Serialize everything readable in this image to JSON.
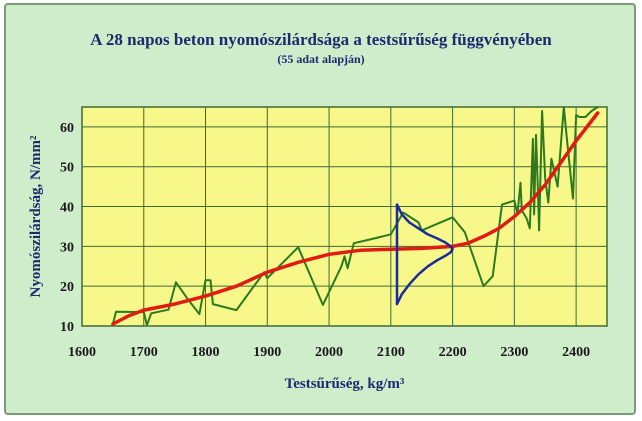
{
  "chart_data": {
    "type": "line",
    "title": "A 28 napos beton nyomószilárdsága a testsűrűség függvényében",
    "subtitle": "(55 adat alapján)",
    "xlabel": "Testsűrűség, kg/m³",
    "ylabel": "Nyomószilárdság, N/mm²",
    "xlim": [
      1600,
      2450
    ],
    "ylim": [
      10,
      65
    ],
    "xticks": [
      1600,
      1700,
      1800,
      1900,
      2000,
      2100,
      2200,
      2300,
      2400
    ],
    "yticks": [
      10,
      20,
      30,
      40,
      50,
      60
    ],
    "grid": true,
    "colors": {
      "plot_background": "#f8f78a",
      "frame_background": "#cfeccb",
      "grid": "#3d6b33",
      "measured": "#2b7a1f",
      "trend": "#e01b14",
      "distribution": "#1b2b9a"
    },
    "series": [
      {
        "kind": "measured",
        "x": [
          1650,
          1655,
          1700,
          1705,
          1712,
          1740,
          1752,
          1770,
          1790,
          1800,
          1808,
          1812,
          1850,
          1895,
          1900,
          1950,
          1990,
          2020,
          2025,
          2030,
          2040,
          2060,
          2100,
          2120,
          2145,
          2150,
          2200,
          2220,
          2250,
          2265,
          2280,
          2300,
          2305,
          2310,
          2312,
          2320,
          2325,
          2330,
          2332,
          2335,
          2338,
          2340,
          2345,
          2350,
          2355,
          2360,
          2370,
          2380,
          2385,
          2395,
          2400,
          2405,
          2415,
          2425,
          2435
        ],
        "y": [
          10.5,
          13.6,
          13.5,
          10.2,
          13.2,
          14.1,
          21,
          17,
          13,
          21.5,
          21.5,
          15.5,
          14,
          23.5,
          22,
          29.8,
          15.3,
          25,
          27.5,
          24.5,
          30.8,
          31.5,
          33,
          38.5,
          36,
          34,
          37.3,
          33.5,
          20,
          22.5,
          40.5,
          41.5,
          38,
          46,
          39,
          37,
          34.5,
          57,
          38,
          58,
          45,
          34,
          64,
          47,
          41,
          52,
          45,
          65,
          57,
          42,
          63,
          62.5,
          62.5,
          64,
          65
        ]
      },
      {
        "kind": "trend",
        "x": [
          1650,
          1675,
          1700,
          1750,
          1800,
          1850,
          1900,
          1950,
          2000,
          2050,
          2100,
          2150,
          2200,
          2225,
          2250,
          2275,
          2300,
          2325,
          2350,
          2375,
          2400,
          2435
        ],
        "y": [
          10.5,
          12.5,
          14,
          15.5,
          17.5,
          20,
          23.5,
          26,
          28,
          29,
          29.3,
          29.5,
          30,
          30.8,
          32.5,
          34.5,
          37.5,
          41,
          45.5,
          51,
          56.5,
          63.5
        ]
      },
      {
        "kind": "distribution",
        "x": [
          2110,
          2118,
          2130,
          2145,
          2160,
          2175,
          2188,
          2197,
          2200,
          2197,
          2188,
          2175,
          2160,
          2145,
          2130,
          2118,
          2110
        ],
        "y": [
          40.5,
          38,
          36,
          34.5,
          33,
          32,
          31,
          30,
          29.3,
          28.5,
          27.6,
          26.5,
          25,
          23,
          20.5,
          18,
          15.5
        ]
      }
    ]
  }
}
